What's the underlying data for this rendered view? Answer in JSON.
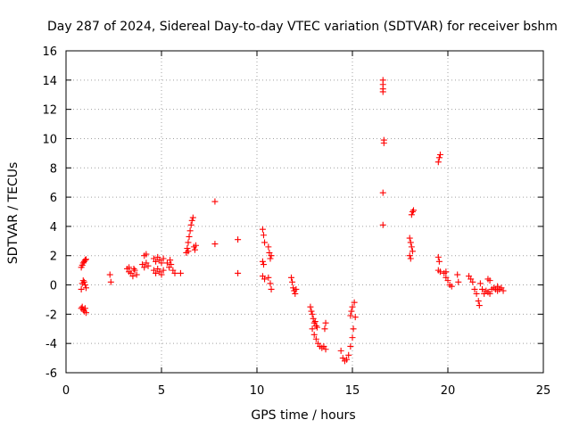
{
  "chart_data": {
    "type": "scatter",
    "title": "Day 287 of 2024, Sidereal Day-to-day VTEC variation (SDTVAR) for receiver bshm",
    "xlabel": "GPS time / hours",
    "ylabel": "SDTVAR / TECUs",
    "xlim": [
      0,
      25
    ],
    "ylim": [
      -6,
      16
    ],
    "xticks": [
      0,
      5,
      10,
      15,
      20,
      25
    ],
    "yticks": [
      -6,
      -4,
      -2,
      0,
      2,
      4,
      6,
      8,
      10,
      12,
      14,
      16
    ],
    "grid": true,
    "marker": "+",
    "color": "#ff0000",
    "series": [
      {
        "name": "SDTVAR",
        "points": [
          [
            0.8,
            1.2
          ],
          [
            0.85,
            1.35
          ],
          [
            0.9,
            1.5
          ],
          [
            0.95,
            1.6
          ],
          [
            1.0,
            1.7
          ],
          [
            1.05,
            1.75
          ],
          [
            0.8,
            -0.3
          ],
          [
            0.85,
            0.1
          ],
          [
            0.9,
            0.3
          ],
          [
            0.95,
            0.2
          ],
          [
            1.0,
            0.0
          ],
          [
            1.05,
            -0.2
          ],
          [
            0.8,
            -1.6
          ],
          [
            0.85,
            -1.5
          ],
          [
            0.9,
            -1.7
          ],
          [
            0.95,
            -1.8
          ],
          [
            1.0,
            -1.6
          ],
          [
            1.05,
            -1.9
          ],
          [
            2.3,
            0.7
          ],
          [
            2.35,
            0.2
          ],
          [
            3.2,
            1.1
          ],
          [
            3.3,
            0.9
          ],
          [
            3.4,
            0.8
          ],
          [
            3.5,
            0.6
          ],
          [
            3.6,
            1.0
          ],
          [
            3.7,
            0.7
          ],
          [
            3.3,
            1.2
          ],
          [
            3.55,
            1.1
          ],
          [
            4.1,
            2.0
          ],
          [
            4.2,
            2.1
          ],
          [
            4.0,
            1.4
          ],
          [
            4.1,
            1.2
          ],
          [
            4.2,
            1.5
          ],
          [
            4.3,
            1.3
          ],
          [
            4.6,
            1.8
          ],
          [
            4.7,
            1.6
          ],
          [
            4.8,
            1.9
          ],
          [
            4.9,
            1.7
          ],
          [
            5.0,
            1.5
          ],
          [
            5.1,
            1.8
          ],
          [
            4.6,
            1.0
          ],
          [
            4.7,
            0.8
          ],
          [
            4.8,
            1.1
          ],
          [
            4.9,
            0.9
          ],
          [
            5.0,
            0.7
          ],
          [
            5.1,
            1.0
          ],
          [
            5.3,
            1.5
          ],
          [
            5.4,
            1.2
          ],
          [
            5.5,
            1.4
          ],
          [
            5.6,
            1.0
          ],
          [
            5.7,
            0.8
          ],
          [
            5.45,
            1.7
          ],
          [
            6.0,
            0.8
          ],
          [
            6.3,
            2.2
          ],
          [
            6.35,
            2.5
          ],
          [
            6.4,
            2.9
          ],
          [
            6.45,
            3.3
          ],
          [
            6.5,
            3.7
          ],
          [
            6.55,
            4.1
          ],
          [
            6.6,
            4.4
          ],
          [
            6.65,
            4.6
          ],
          [
            6.7,
            2.6
          ],
          [
            6.75,
            2.4
          ],
          [
            6.8,
            2.7
          ],
          [
            6.4,
            2.3
          ],
          [
            7.8,
            5.7
          ],
          [
            7.8,
            2.8
          ],
          [
            9.0,
            3.1
          ],
          [
            9.0,
            0.8
          ],
          [
            10.3,
            3.8
          ],
          [
            10.35,
            3.4
          ],
          [
            10.4,
            2.9
          ],
          [
            10.3,
            1.6
          ],
          [
            10.35,
            1.4
          ],
          [
            10.3,
            0.6
          ],
          [
            10.4,
            0.4
          ],
          [
            10.6,
            2.6
          ],
          [
            10.65,
            2.2
          ],
          [
            10.7,
            1.8
          ],
          [
            10.75,
            2.0
          ],
          [
            10.6,
            0.5
          ],
          [
            10.7,
            0.1
          ],
          [
            10.75,
            -0.3
          ],
          [
            11.8,
            0.5
          ],
          [
            11.85,
            0.2
          ],
          [
            11.9,
            -0.2
          ],
          [
            11.95,
            -0.4
          ],
          [
            12.0,
            -0.6
          ],
          [
            12.05,
            -0.3
          ],
          [
            12.8,
            -1.5
          ],
          [
            12.85,
            -1.8
          ],
          [
            12.9,
            -2.0
          ],
          [
            12.95,
            -2.3
          ],
          [
            13.0,
            -2.6
          ],
          [
            13.05,
            -2.5
          ],
          [
            13.1,
            -2.8
          ],
          [
            13.15,
            -2.9
          ],
          [
            12.9,
            -3.0
          ],
          [
            13.0,
            -3.4
          ],
          [
            13.1,
            -3.7
          ],
          [
            13.2,
            -4.0
          ],
          [
            13.3,
            -4.2
          ],
          [
            13.4,
            -4.3
          ],
          [
            13.5,
            -4.2
          ],
          [
            13.6,
            -4.4
          ],
          [
            13.55,
            -3.0
          ],
          [
            13.6,
            -2.6
          ],
          [
            14.4,
            -4.5
          ],
          [
            14.5,
            -5.0
          ],
          [
            14.6,
            -5.2
          ],
          [
            14.7,
            -5.1
          ],
          [
            14.8,
            -4.8
          ],
          [
            14.9,
            -4.2
          ],
          [
            15.0,
            -3.6
          ],
          [
            15.05,
            -3.0
          ],
          [
            14.9,
            -2.1
          ],
          [
            14.95,
            -1.8
          ],
          [
            15.0,
            -1.5
          ],
          [
            15.1,
            -1.2
          ],
          [
            15.15,
            -2.2
          ],
          [
            16.6,
            14.0
          ],
          [
            16.6,
            13.7
          ],
          [
            16.6,
            13.4
          ],
          [
            16.6,
            13.2
          ],
          [
            16.65,
            9.9
          ],
          [
            16.65,
            9.7
          ],
          [
            16.6,
            6.3
          ],
          [
            16.6,
            4.1
          ],
          [
            18.1,
            4.8
          ],
          [
            18.15,
            5.0
          ],
          [
            18.2,
            5.1
          ],
          [
            18.0,
            3.2
          ],
          [
            18.05,
            2.9
          ],
          [
            18.1,
            2.6
          ],
          [
            18.15,
            2.3
          ],
          [
            18.0,
            2.0
          ],
          [
            18.05,
            1.8
          ],
          [
            19.5,
            8.4
          ],
          [
            19.55,
            8.7
          ],
          [
            19.6,
            8.9
          ],
          [
            19.5,
            1.9
          ],
          [
            19.55,
            1.6
          ],
          [
            19.5,
            1.0
          ],
          [
            19.6,
            0.9
          ],
          [
            19.8,
            0.8
          ],
          [
            19.9,
            0.5
          ],
          [
            20.0,
            0.3
          ],
          [
            20.1,
            0.0
          ],
          [
            20.2,
            -0.1
          ],
          [
            19.9,
            0.9
          ],
          [
            20.5,
            0.7
          ],
          [
            20.55,
            0.2
          ],
          [
            21.1,
            0.6
          ],
          [
            21.2,
            0.4
          ],
          [
            21.3,
            0.2
          ],
          [
            21.4,
            -0.3
          ],
          [
            21.5,
            -0.6
          ],
          [
            21.6,
            -1.1
          ],
          [
            21.65,
            -1.4
          ],
          [
            21.7,
            0.1
          ],
          [
            21.8,
            -0.3
          ],
          [
            21.9,
            -0.6
          ],
          [
            22.0,
            -0.4
          ],
          [
            22.1,
            -0.5
          ],
          [
            22.2,
            -0.6
          ],
          [
            22.3,
            -0.3
          ],
          [
            22.1,
            0.4
          ],
          [
            22.2,
            0.3
          ],
          [
            22.4,
            -0.2
          ],
          [
            22.5,
            -0.3
          ],
          [
            22.6,
            -0.4
          ],
          [
            22.7,
            -0.3
          ],
          [
            22.8,
            -0.2
          ],
          [
            22.9,
            -0.4
          ],
          [
            22.6,
            -0.1
          ]
        ]
      }
    ]
  }
}
